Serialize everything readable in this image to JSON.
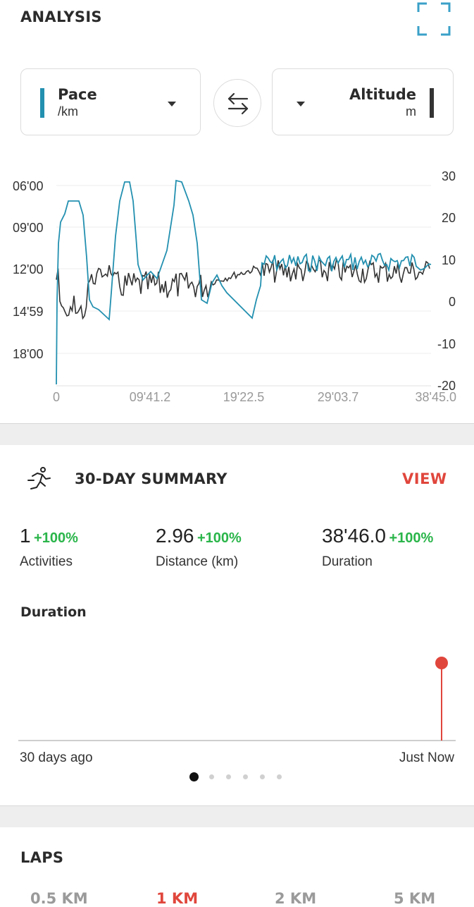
{
  "analysis": {
    "title": "ANALYSIS",
    "left_metric": {
      "name": "Pace",
      "unit": "/km",
      "color": "#2390b0"
    },
    "right_metric": {
      "name": "Altitude",
      "unit": "m",
      "color": "#333333"
    },
    "swap_icon": "swap-arrows-icon",
    "fullscreen_icon": "fullscreen-icon"
  },
  "chart_data": {
    "type": "line",
    "x_ticks": [
      "0",
      "09'41.2",
      "19'22.5",
      "29'03.7",
      "38'45.0"
    ],
    "y_left_ticks": [
      "06'00",
      "09'00",
      "12'00",
      "14'59",
      "18'00"
    ],
    "y_right_ticks": [
      "30",
      "20",
      "10",
      "0",
      "-10",
      "-20"
    ],
    "y_left_range": [
      "06'00",
      "18'00"
    ],
    "y_right_range": [
      -20,
      30
    ],
    "grid": true,
    "series": [
      {
        "name": "Pace",
        "axis": "left",
        "color": "#2390b0"
      },
      {
        "name": "Altitude",
        "axis": "right",
        "color": "#333333"
      }
    ]
  },
  "summary": {
    "title": "30-DAY SUMMARY",
    "view_label": "VIEW",
    "stats": [
      {
        "value": "1",
        "change": "+100%",
        "label": "Activities"
      },
      {
        "value": "2.96",
        "change": "+100%",
        "label": "Distance (km)"
      },
      {
        "value": "38'46.0",
        "change": "+100%",
        "label": "Duration"
      }
    ],
    "chart_title": "Duration",
    "start_label": "30 days ago",
    "end_label": "Just Now",
    "accent_color": "#e0463c",
    "page_count": 6,
    "active_page": 1
  },
  "laps": {
    "title": "LAPS",
    "tabs": [
      "0.5 KM",
      "1 KM",
      "2 KM",
      "5 KM"
    ],
    "active_tab": "1 KM"
  }
}
